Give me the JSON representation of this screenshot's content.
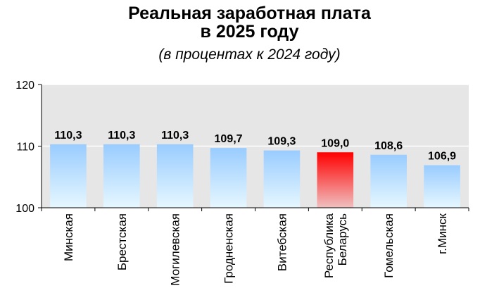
{
  "chart_data": {
    "type": "bar",
    "title_lines": [
      "Реальная заработная плата",
      "в 2025 году"
    ],
    "subtitle": "(в процентах к 2024 году)",
    "categories": [
      [
        "Минская"
      ],
      [
        "Брестская"
      ],
      [
        "Могилевская"
      ],
      [
        "Гродненская"
      ],
      [
        "Витебская"
      ],
      [
        "Республика",
        "Беларусь"
      ],
      [
        "Гомельская"
      ],
      [
        "г.Минск"
      ]
    ],
    "values": [
      110.3,
      110.3,
      110.3,
      109.7,
      109.3,
      109.0,
      108.6,
      106.9
    ],
    "value_labels": [
      "110,3",
      "110,3",
      "110,3",
      "109,7",
      "109,3",
      "109,0",
      "108,6",
      "106,9"
    ],
    "highlight_index": 5,
    "ylim": [
      100,
      120
    ],
    "yticks": [
      100,
      110,
      120
    ],
    "ytick_labels": [
      "100",
      "110",
      "120"
    ],
    "grid": true,
    "colors": {
      "bar_top": "#99ccff",
      "bar_bottom": "#e6f7ff",
      "highlight_top": "#ff0000",
      "highlight_bottom": "#f0c0c0",
      "plot_background": "#e6e6e6",
      "gridline": "#ffffff"
    }
  }
}
